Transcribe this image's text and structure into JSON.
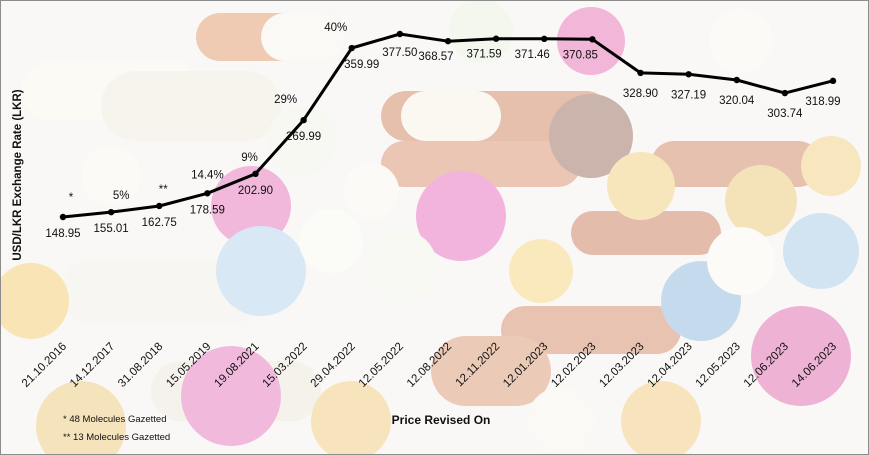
{
  "chart_data": {
    "type": "line",
    "title": "",
    "xlabel": "Price Revised On",
    "ylabel": "USD/LKR Exchange Rate (LKR)",
    "ylim": [
      0,
      400
    ],
    "grid": false,
    "legend": "none",
    "categories": [
      "21.10.2016",
      "14.12.2017",
      "31.08.2018",
      "15.05.2019",
      "19.08.2021",
      "15.03.2022",
      "29.04.2022",
      "12.05.2022",
      "12.08.2022",
      "12.11.2022",
      "12.01.2023",
      "12.02.2023",
      "12.03.2023",
      "12.04.2023",
      "12.05.2023",
      "12.06.2023",
      "14.06.2023"
    ],
    "series": [
      {
        "values": [
          148.95,
          155.01,
          162.75,
          178.59,
          202.9,
          269.99,
          359.99,
          377.5,
          368.57,
          371.59,
          371.46,
          370.85,
          328.9,
          327.19,
          320.04,
          303.74,
          318.99
        ]
      }
    ],
    "value_labels": [
      "148.95",
      "155.01",
      "162.75",
      "178.59",
      "202.90",
      "269.99",
      "359.99",
      "377.50",
      "368.57",
      "371.59",
      "371.46",
      "370.85",
      "328.90",
      "327.19",
      "320.04",
      "303.74",
      "318.99"
    ],
    "annotations": [
      {
        "index": 0,
        "text": "*"
      },
      {
        "index": 1,
        "text": "5%"
      },
      {
        "index": 2,
        "text": "**"
      },
      {
        "index": 3,
        "text": "14.4%"
      },
      {
        "index": 4,
        "text": "9%"
      },
      {
        "index": 5,
        "text": "29%"
      },
      {
        "index": 6,
        "text": "40%"
      }
    ],
    "footnotes": [
      "* 48 Molecules Gazetted",
      "** 13 Molecules Gazetted"
    ],
    "line_color": "#000000"
  }
}
